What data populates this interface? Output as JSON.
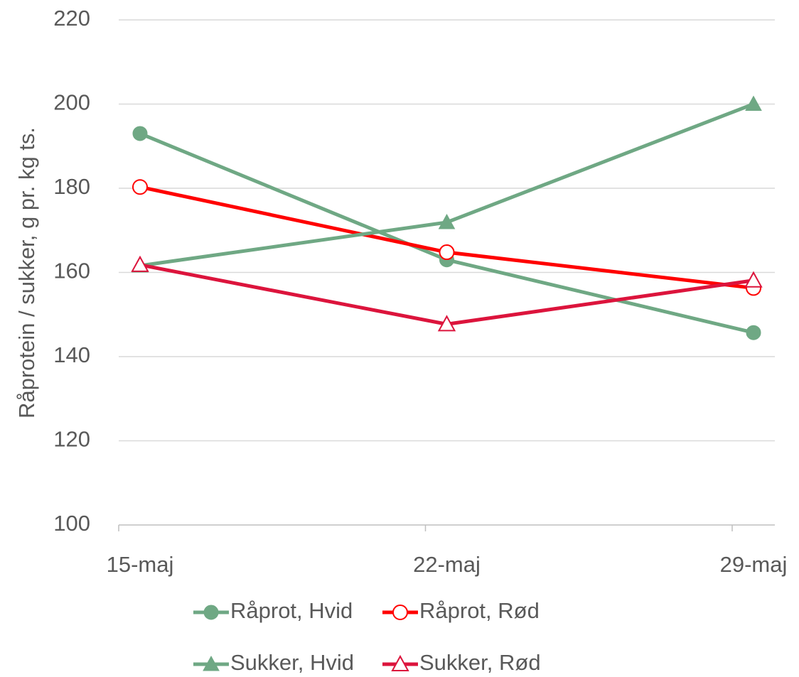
{
  "chart_data": {
    "type": "line",
    "y_label": "Råprotein / sukker, g pr. kg ts.",
    "categories": [
      "15-maj",
      "22-maj",
      "29-maj"
    ],
    "series": [
      {
        "name": "Råprot, Hvid",
        "color": "#6fa884",
        "marker": "circle",
        "marker_fill": "filled",
        "values": [
          193,
          163,
          145.7
        ]
      },
      {
        "name": "Råprot, Rød",
        "color": "#ff0000",
        "marker": "circle",
        "marker_fill": "hollow",
        "values": [
          180.3,
          164.8,
          156.3
        ]
      },
      {
        "name": "Sukker, Hvid",
        "color": "#6fa884",
        "marker": "triangle",
        "marker_fill": "filled",
        "values": [
          161.6,
          171.9,
          200
        ]
      },
      {
        "name": "Sukker, Rød",
        "color": "#dc143c",
        "marker": "triangle",
        "marker_fill": "hollow",
        "values": [
          161.8,
          147.7,
          158.1
        ]
      }
    ],
    "ylim": [
      100,
      220
    ],
    "yticks": [
      100,
      120,
      140,
      160,
      180,
      200,
      220
    ],
    "grid": true,
    "legend": "bottom"
  }
}
